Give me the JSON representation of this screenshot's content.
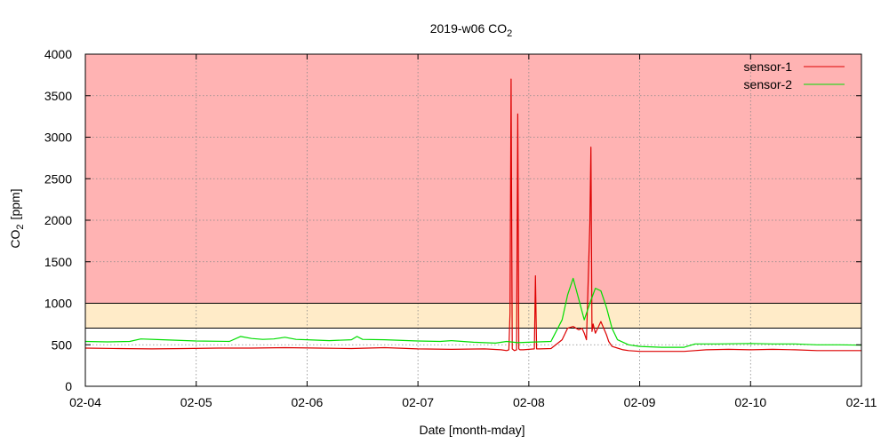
{
  "chart_data": {
    "type": "line",
    "title": "2019-w06 CO",
    "title_sub": "2",
    "xlabel": "Date [month-mday]",
    "ylabel_main": "CO",
    "ylabel_sub": "2",
    "ylabel_unit": "[ppm]",
    "x_ticks": [
      "02-04",
      "02-05",
      "02-06",
      "02-07",
      "02-08",
      "02-09",
      "02-10",
      "02-11"
    ],
    "y_ticks": [
      0,
      500,
      1000,
      1500,
      2000,
      2500,
      3000,
      3500,
      4000
    ],
    "xlim": [
      0,
      7
    ],
    "ylim": [
      0,
      4000
    ],
    "grid": true,
    "legend_position": "top-right",
    "bands": [
      {
        "from": 1000,
        "to": 4000,
        "color": "#ffb3b3"
      },
      {
        "from": 700,
        "to": 1000,
        "color": "#ffebc8"
      }
    ],
    "threshold_lines": [
      1000,
      700
    ],
    "series": [
      {
        "name": "sensor-1",
        "color": "#dd0000",
        "x": [
          0,
          0.3,
          0.6,
          0.9,
          1.2,
          1.5,
          1.8,
          2.1,
          2.4,
          2.7,
          3.0,
          3.3,
          3.6,
          3.75,
          3.8,
          3.82,
          3.83,
          3.84,
          3.85,
          3.87,
          3.89,
          3.9,
          3.91,
          3.92,
          3.95,
          4.0,
          4.05,
          4.06,
          4.07,
          4.1,
          4.2,
          4.3,
          4.35,
          4.4,
          4.45,
          4.48,
          4.5,
          4.52,
          4.55,
          4.56,
          4.57,
          4.58,
          4.6,
          4.65,
          4.7,
          4.72,
          4.75,
          4.8,
          4.85,
          4.9,
          5.0,
          5.2,
          5.4,
          5.5,
          5.6,
          5.8,
          6.0,
          6.2,
          6.4,
          6.6,
          6.8,
          7.0
        ],
        "y": [
          460,
          455,
          450,
          455,
          460,
          460,
          465,
          460,
          455,
          465,
          450,
          445,
          450,
          440,
          430,
          440,
          880,
          3700,
          450,
          430,
          440,
          3280,
          450,
          440,
          440,
          445,
          450,
          1330,
          450,
          450,
          455,
          560,
          700,
          720,
          680,
          700,
          640,
          560,
          1960,
          2880,
          660,
          750,
          640,
          780,
          620,
          540,
          480,
          460,
          440,
          430,
          420,
          420,
          420,
          430,
          440,
          445,
          440,
          445,
          440,
          430,
          430,
          430
        ]
      },
      {
        "name": "sensor-2",
        "color": "#00dd00",
        "x": [
          0,
          0.2,
          0.4,
          0.5,
          0.7,
          1.0,
          1.3,
          1.4,
          1.5,
          1.6,
          1.7,
          1.8,
          1.9,
          2.0,
          2.2,
          2.4,
          2.45,
          2.5,
          2.7,
          3.0,
          3.2,
          3.3,
          3.5,
          3.7,
          3.8,
          3.9,
          4.0,
          4.2,
          4.3,
          4.35,
          4.4,
          4.45,
          4.5,
          4.55,
          4.6,
          4.65,
          4.7,
          4.75,
          4.8,
          4.9,
          5.0,
          5.2,
          5.4,
          5.5,
          5.7,
          6.0,
          6.2,
          6.4,
          6.6,
          6.8,
          7.0
        ],
        "y": [
          540,
          535,
          540,
          570,
          560,
          545,
          540,
          600,
          575,
          565,
          570,
          590,
          565,
          560,
          550,
          560,
          600,
          565,
          560,
          545,
          540,
          550,
          530,
          520,
          540,
          525,
          530,
          540,
          800,
          1100,
          1300,
          1050,
          800,
          1000,
          1180,
          1150,
          950,
          700,
          560,
          500,
          480,
          470,
          470,
          510,
          510,
          515,
          510,
          510,
          500,
          500,
          495
        ]
      }
    ]
  }
}
